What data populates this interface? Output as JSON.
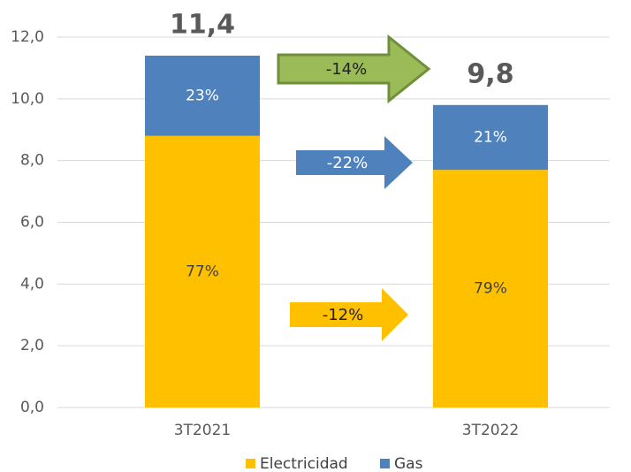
{
  "chart_data": {
    "type": "stacked_bar",
    "categories": [
      "3T2021",
      "3T2022"
    ],
    "series": [
      {
        "name": "Electricidad",
        "color": "#ffc000",
        "values": [
          8.8,
          7.7
        ],
        "value_labels": [
          "77%",
          "79%"
        ]
      },
      {
        "name": "Gas",
        "color": "#4f81bd",
        "values": [
          2.6,
          2.1
        ],
        "value_labels": [
          "23%",
          "21%"
        ]
      }
    ],
    "totals": [
      "11,4",
      "9,8"
    ],
    "annotations": [
      "-14%",
      "-22%",
      "-12%"
    ],
    "ylim": [
      0,
      12
    ],
    "yticks": [
      {
        "value": 0,
        "label": "0,0"
      },
      {
        "value": 2,
        "label": "2,0"
      },
      {
        "value": 4,
        "label": "4,0"
      },
      {
        "value": 6,
        "label": "6,0"
      },
      {
        "value": 8,
        "label": "8,0"
      },
      {
        "value": 10,
        "label": "10,0"
      },
      {
        "value": 12,
        "label": "12,0"
      }
    ],
    "grid": true
  }
}
